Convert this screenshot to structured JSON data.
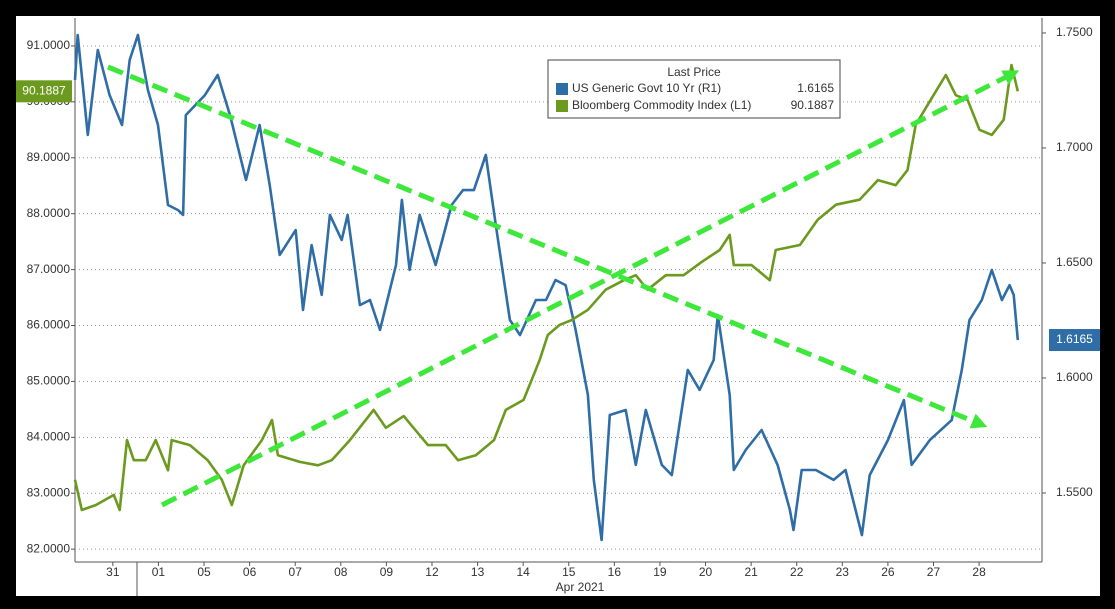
{
  "chart_data": {
    "type": "line",
    "legend_title": "Last Price",
    "xlabel": "Apr 2021",
    "xlim": [
      -0.83,
      20.38
    ],
    "xticks": [
      {
        "value": 0,
        "label": "31"
      },
      {
        "value": 1,
        "label": "01"
      },
      {
        "value": 2,
        "label": "05"
      },
      {
        "value": 3,
        "label": "06"
      },
      {
        "value": 4,
        "label": "07"
      },
      {
        "value": 5,
        "label": "08"
      },
      {
        "value": 6,
        "label": "09"
      },
      {
        "value": 7,
        "label": "12"
      },
      {
        "value": 8,
        "label": "13"
      },
      {
        "value": 9,
        "label": "14"
      },
      {
        "value": 10,
        "label": "15"
      },
      {
        "value": 11,
        "label": "16"
      },
      {
        "value": 12,
        "label": "19"
      },
      {
        "value": 13,
        "label": "20"
      },
      {
        "value": 14,
        "label": "21"
      },
      {
        "value": 15,
        "label": "22"
      },
      {
        "value": 16,
        "label": "23"
      },
      {
        "value": 17,
        "label": "26"
      },
      {
        "value": 18,
        "label": "27"
      },
      {
        "value": 19,
        "label": "28"
      }
    ],
    "ylim": [
      81.77,
      91.5
    ],
    "yticks": [
      {
        "value": 82,
        "label": "82.0000"
      },
      {
        "value": 83,
        "label": "83.0000"
      },
      {
        "value": 84,
        "label": "84.0000"
      },
      {
        "value": 85,
        "label": "85.0000"
      },
      {
        "value": 86,
        "label": "86.0000"
      },
      {
        "value": 87,
        "label": "87.0000"
      },
      {
        "value": 88,
        "label": "88.0000"
      },
      {
        "value": 89,
        "label": "89.0000"
      },
      {
        "value": 90,
        "label": "90.0000"
      },
      {
        "value": 91,
        "label": "91.0000"
      }
    ],
    "y2lim": [
      1.52,
      1.7565
    ],
    "y2ticks": [
      {
        "value": 1.55,
        "label": "1.5500"
      },
      {
        "value": 1.6,
        "label": "1.6000"
      },
      {
        "value": 1.65,
        "label": "1.6500"
      },
      {
        "value": 1.7,
        "label": "1.7000"
      },
      {
        "value": 1.75,
        "label": "1.7500"
      }
    ],
    "grid": true,
    "legend": "top-right",
    "series": [
      {
        "name": "US Generic Govt 10 Yr  (R1)",
        "color": "#2f6da6",
        "axis": "y2",
        "x": [
          -0.83,
          -0.77,
          -0.55,
          -0.33,
          -0.07,
          0.2,
          0.37,
          0.55,
          0.77,
          0.99,
          1.21,
          1.43,
          1.54,
          1.6,
          2.02,
          2.3,
          2.57,
          2.92,
          3.22,
          3.44,
          3.66,
          4.01,
          4.17,
          4.36,
          4.58,
          4.76,
          5.02,
          5.15,
          5.42,
          5.64,
          5.86,
          6.21,
          6.34,
          6.51,
          6.73,
          7.08,
          7.43,
          7.68,
          7.92,
          8.18,
          8.4,
          8.71,
          8.93,
          9.28,
          9.5,
          9.71,
          9.93,
          10.15,
          10.42,
          10.55,
          10.72,
          10.9,
          11.25,
          11.47,
          11.69,
          12.04,
          12.26,
          12.61,
          12.87,
          13.18,
          13.27,
          13.53,
          13.62,
          13.88,
          14.23,
          14.58,
          14.85,
          14.93,
          15.11,
          15.42,
          15.81,
          16.07,
          16.43,
          16.6,
          17.0,
          17.35,
          17.52,
          17.92,
          18.4,
          18.62,
          18.79,
          19.06,
          19.28,
          19.5,
          19.67,
          19.76,
          19.85
        ],
        "values": [
          1.7296,
          1.7491,
          1.7057,
          1.7426,
          1.723,
          1.71,
          1.7383,
          1.7491,
          1.7252,
          1.71,
          1.6752,
          1.673,
          1.6709,
          1.7143,
          1.723,
          1.7317,
          1.7143,
          1.6861,
          1.71,
          1.6839,
          1.6535,
          1.6643,
          1.6296,
          1.6578,
          1.6361,
          1.6709,
          1.66,
          1.6709,
          1.6317,
          1.6339,
          1.6209,
          1.6491,
          1.6774,
          1.647,
          1.6709,
          1.6491,
          1.6752,
          1.6817,
          1.6817,
          1.697,
          1.6665,
          1.6252,
          1.6187,
          1.6339,
          1.6339,
          1.6426,
          1.6404,
          1.6209,
          1.5926,
          1.5557,
          1.5296,
          1.5839,
          1.5861,
          1.5622,
          1.5861,
          1.5622,
          1.5578,
          1.6035,
          1.5948,
          1.6078,
          1.6274,
          1.5926,
          1.56,
          1.5687,
          1.5774,
          1.5622,
          1.5426,
          1.5339,
          1.56,
          1.56,
          1.5557,
          1.56,
          1.5317,
          1.5578,
          1.573,
          1.5904,
          1.5622,
          1.573,
          1.5817,
          1.6035,
          1.6252,
          1.6339,
          1.647,
          1.6339,
          1.6404,
          1.6361,
          1.6165
        ]
      },
      {
        "name": "Bloomberg Commodity Index  (L1)",
        "color": "#6b9a1e",
        "axis": "y",
        "x": [
          -0.83,
          -0.68,
          -0.37,
          0.02,
          0.15,
          0.31,
          0.46,
          0.72,
          0.94,
          1.21,
          1.29,
          1.69,
          2.08,
          2.39,
          2.61,
          2.87,
          3.27,
          3.49,
          3.62,
          4.1,
          4.5,
          4.8,
          5.2,
          5.72,
          5.99,
          6.38,
          6.91,
          7.3,
          7.57,
          7.96,
          8.36,
          8.62,
          9.01,
          9.36,
          9.54,
          9.8,
          10.07,
          10.42,
          10.81,
          11.21,
          11.47,
          11.73,
          12.13,
          12.52,
          12.92,
          13.31,
          13.53,
          13.62,
          14.01,
          14.41,
          14.54,
          15.07,
          15.46,
          15.86,
          16.38,
          16.78,
          17.17,
          17.43,
          17.61,
          18.0,
          18.27,
          18.49,
          18.75,
          19.01,
          19.28,
          19.54,
          19.71,
          19.85
        ],
        "values": [
          83.24,
          82.7,
          82.79,
          82.97,
          82.7,
          83.95,
          83.59,
          83.59,
          83.95,
          83.41,
          83.95,
          83.86,
          83.59,
          83.24,
          82.79,
          83.5,
          83.95,
          84.31,
          83.68,
          83.56,
          83.5,
          83.59,
          83.95,
          84.49,
          84.17,
          84.38,
          83.86,
          83.86,
          83.59,
          83.68,
          83.95,
          84.49,
          84.67,
          85.38,
          85.83,
          86.01,
          86.1,
          86.28,
          86.64,
          86.81,
          86.9,
          86.64,
          86.9,
          86.9,
          87.14,
          87.35,
          87.62,
          87.08,
          87.08,
          86.81,
          87.35,
          87.44,
          87.89,
          88.16,
          88.25,
          88.6,
          88.51,
          88.78,
          89.59,
          90.12,
          90.48,
          90.12,
          90.03,
          89.5,
          89.41,
          89.68,
          90.66,
          90.1887
        ]
      }
    ]
  }
}
